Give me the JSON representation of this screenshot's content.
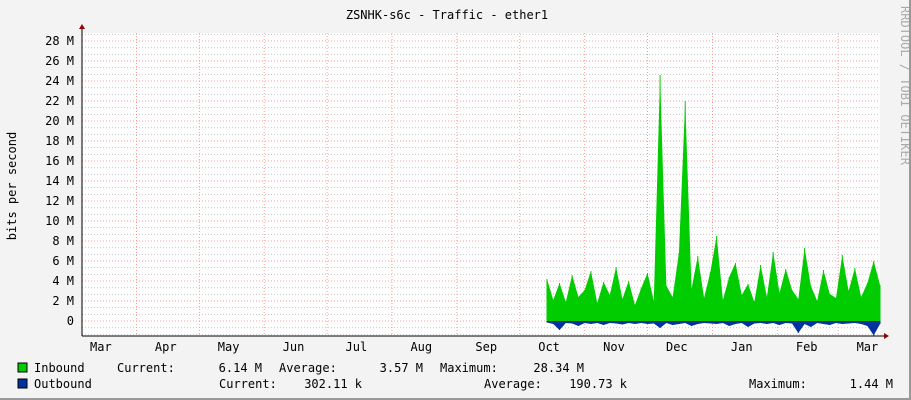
{
  "chart_data": {
    "type": "area",
    "title": "ZSNHK-s6c - Traffic - ether1",
    "ylabel": "bits per second",
    "watermark": "RRDTOOL / TOBI OETIKER",
    "ylim": [
      -1.5,
      28.8
    ],
    "xlim": [
      "2015-03-06",
      "2016-03-21"
    ],
    "y_ticks": [
      "0",
      "2 M",
      "4 M",
      "6 M",
      "8 M",
      "10 M",
      "12 M",
      "14 M",
      "16 M",
      "18 M",
      "20 M",
      "22 M",
      "24 M",
      "26 M",
      "28 M"
    ],
    "y_tick_values": [
      0,
      2,
      4,
      6,
      8,
      10,
      12,
      14,
      16,
      18,
      20,
      22,
      24,
      26,
      28
    ],
    "x_tick_labels": [
      "Mar",
      "Apr",
      "May",
      "Jun",
      "Jul",
      "Aug",
      "Sep",
      "Oct",
      "Nov",
      "Dec",
      "Jan",
      "Feb",
      "Mar"
    ],
    "grid": true,
    "colors": {
      "inbound": "#00cc00",
      "outbound": "#0033a0",
      "grid_major": "#ff9999",
      "grid_minor": "#c8c8c8",
      "axis": "#990000"
    },
    "series": [
      {
        "name": "Inbound",
        "unit": "M",
        "x": [
          "2015-10-14",
          "2015-10-17",
          "2015-10-20",
          "2015-10-23",
          "2015-10-26",
          "2015-10-29",
          "2015-11-01",
          "2015-11-04",
          "2015-11-07",
          "2015-11-10",
          "2015-11-13",
          "2015-11-16",
          "2015-11-19",
          "2015-11-22",
          "2015-11-25",
          "2015-11-28",
          "2015-12-01",
          "2015-12-04",
          "2015-12-07",
          "2015-12-10",
          "2015-12-13",
          "2015-12-16",
          "2015-12-19",
          "2015-12-22",
          "2015-12-25",
          "2015-12-28",
          "2015-12-31",
          "2016-01-03",
          "2016-01-06",
          "2016-01-09",
          "2016-01-12",
          "2016-01-15",
          "2016-01-18",
          "2016-01-21",
          "2016-01-24",
          "2016-01-27",
          "2016-01-30",
          "2016-02-02",
          "2016-02-05",
          "2016-02-08",
          "2016-02-11",
          "2016-02-14",
          "2016-02-17",
          "2016-02-20",
          "2016-02-23",
          "2016-02-26",
          "2016-02-29",
          "2016-03-03",
          "2016-03-06",
          "2016-03-09",
          "2016-03-12",
          "2016-03-15",
          "2016-03-18",
          "2016-03-21"
        ],
        "values": [
          4.2,
          2.1,
          3.8,
          1.9,
          4.6,
          2.4,
          3.1,
          5.0,
          1.8,
          3.9,
          2.6,
          5.4,
          2.2,
          4.0,
          1.6,
          3.3,
          4.8,
          2.0,
          24.6,
          3.5,
          2.4,
          6.8,
          22.0,
          3.2,
          6.5,
          2.3,
          4.9,
          8.5,
          2.1,
          4.4,
          5.8,
          2.6,
          3.7,
          1.9,
          5.6,
          2.4,
          6.9,
          2.8,
          5.2,
          3.1,
          2.2,
          7.3,
          3.5,
          2.0,
          5.1,
          2.7,
          2.3,
          6.6,
          3.0,
          5.3,
          2.4,
          3.8,
          6.0,
          3.6
        ]
      },
      {
        "name": "Outbound",
        "unit": "M",
        "x": [
          "2015-10-14",
          "2015-10-17",
          "2015-10-20",
          "2015-10-23",
          "2015-10-26",
          "2015-10-29",
          "2015-11-01",
          "2015-11-04",
          "2015-11-07",
          "2015-11-10",
          "2015-11-13",
          "2015-11-16",
          "2015-11-19",
          "2015-11-22",
          "2015-11-25",
          "2015-11-28",
          "2015-12-01",
          "2015-12-04",
          "2015-12-07",
          "2015-12-10",
          "2015-12-13",
          "2015-12-16",
          "2015-12-19",
          "2015-12-22",
          "2015-12-25",
          "2015-12-28",
          "2015-12-31",
          "2016-01-03",
          "2016-01-06",
          "2016-01-09",
          "2016-01-12",
          "2016-01-15",
          "2016-01-18",
          "2016-01-21",
          "2016-01-24",
          "2016-01-27",
          "2016-01-30",
          "2016-02-02",
          "2016-02-05",
          "2016-02-08",
          "2016-02-11",
          "2016-02-14",
          "2016-02-17",
          "2016-02-20",
          "2016-02-23",
          "2016-02-26",
          "2016-02-29",
          "2016-03-03",
          "2016-03-06",
          "2016-03-09",
          "2016-03-12",
          "2016-03-15",
          "2016-03-18",
          "2016-03-21"
        ],
        "values": [
          0.15,
          0.3,
          0.9,
          0.2,
          0.25,
          0.5,
          0.2,
          0.3,
          0.2,
          0.4,
          0.2,
          0.25,
          0.35,
          0.2,
          0.3,
          0.2,
          0.3,
          0.25,
          0.7,
          0.2,
          0.4,
          0.3,
          0.2,
          0.5,
          0.3,
          0.2,
          0.25,
          0.3,
          0.2,
          0.5,
          0.3,
          0.2,
          0.6,
          0.25,
          0.2,
          0.3,
          0.2,
          0.4,
          0.2,
          0.25,
          1.2,
          0.3,
          0.6,
          0.2,
          0.3,
          0.4,
          0.2,
          0.3,
          0.25,
          0.2,
          0.3,
          0.5,
          1.44,
          0.3
        ]
      }
    ]
  },
  "legend": [
    {
      "label": "Inbound",
      "current_label": "Current:",
      "current": "6.14 M",
      "average_label": "Average:",
      "average": "3.57 M",
      "maximum_label": "Maximum:",
      "maximum": "28.34 M"
    },
    {
      "label": "Outbound",
      "current_label": "Current:",
      "current": "302.11 k",
      "average_label": "Average:",
      "average": "190.73 k",
      "maximum_label": "Maximum:",
      "maximum": "1.44 M"
    }
  ]
}
